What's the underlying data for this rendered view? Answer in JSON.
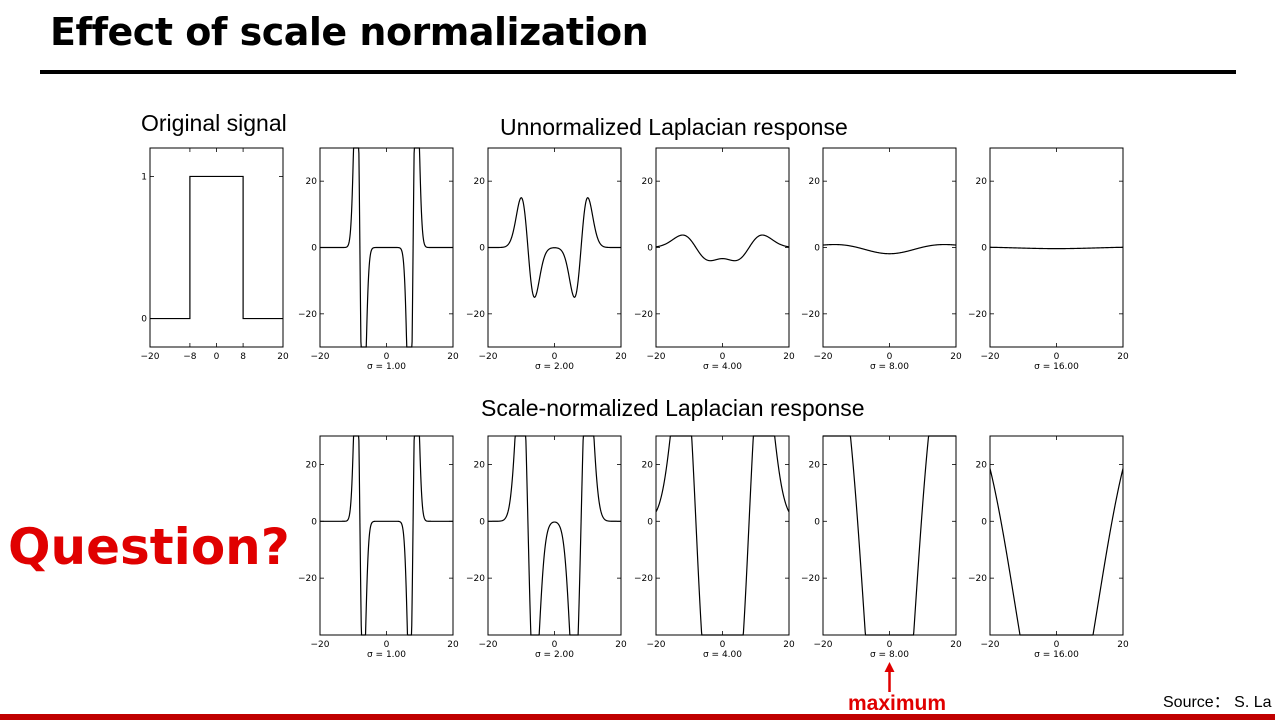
{
  "slide": {
    "title": "Effect of scale normalization",
    "caption_original": "Original signal",
    "caption_unnormalized": "Unnormalized Laplacian response",
    "caption_normalized": "Scale-normalized Laplacian response",
    "question": "Question?",
    "maximum_label": "maximum",
    "source": "Source： S. La",
    "colors": {
      "accent": "#e00000",
      "footer": "#c00000",
      "rule": "#000000"
    }
  },
  "chart_data": [
    {
      "id": "original",
      "type": "line",
      "title": "",
      "xlim": [
        -20,
        20
      ],
      "ylim": [
        -0.2,
        1.2
      ],
      "xticks": [
        -20,
        -8,
        0,
        8,
        20
      ],
      "xtick_labels": [
        "−20",
        "−8",
        "0",
        "8",
        "20"
      ],
      "yticks": [
        0,
        1
      ],
      "ytick_labels": [
        "0",
        "1"
      ],
      "xlabel": "",
      "x": [
        -20,
        -8,
        -8,
        8,
        8,
        20
      ],
      "y": [
        0,
        0,
        1,
        1,
        0,
        0
      ]
    },
    {
      "id": "unnorm-1",
      "group": "unnormalized",
      "type": "line",
      "sigma": 1,
      "xlabel": "σ = 1.00",
      "xlim": [
        -20,
        20
      ],
      "ylim": [
        -30,
        30
      ],
      "xticks": [
        -20,
        0,
        20
      ],
      "xtick_labels": [
        "−20",
        "0",
        "20"
      ],
      "yticks": [
        -20,
        0,
        20
      ],
      "ytick_labels": [
        "−20",
        "0",
        "20"
      ]
    },
    {
      "id": "unnorm-2",
      "group": "unnormalized",
      "type": "line",
      "sigma": 2,
      "xlabel": "σ = 2.00",
      "xlim": [
        -20,
        20
      ],
      "ylim": [
        -30,
        30
      ],
      "xticks": [
        -20,
        0,
        20
      ],
      "xtick_labels": [
        "−20",
        "0",
        "20"
      ],
      "yticks": [
        -20,
        0,
        20
      ],
      "ytick_labels": [
        "−20",
        "0",
        "20"
      ]
    },
    {
      "id": "unnorm-4",
      "group": "unnormalized",
      "type": "line",
      "sigma": 4,
      "xlabel": "σ = 4.00",
      "xlim": [
        -20,
        20
      ],
      "ylim": [
        -30,
        30
      ],
      "xticks": [
        -20,
        0,
        20
      ],
      "xtick_labels": [
        "−20",
        "0",
        "20"
      ],
      "yticks": [
        -20,
        0,
        20
      ],
      "ytick_labels": [
        "−20",
        "0",
        "20"
      ]
    },
    {
      "id": "unnorm-8",
      "group": "unnormalized",
      "type": "line",
      "sigma": 8,
      "xlabel": "σ = 8.00",
      "xlim": [
        -20,
        20
      ],
      "ylim": [
        -30,
        30
      ],
      "xticks": [
        -20,
        0,
        20
      ],
      "xtick_labels": [
        "−20",
        "0",
        "20"
      ],
      "yticks": [
        -20,
        0,
        20
      ],
      "ytick_labels": [
        "−20",
        "0",
        "20"
      ]
    },
    {
      "id": "unnorm-16",
      "group": "unnormalized",
      "type": "line",
      "sigma": 16,
      "xlabel": "σ = 16.00",
      "xlim": [
        -20,
        20
      ],
      "ylim": [
        -30,
        30
      ],
      "xticks": [
        -20,
        0,
        20
      ],
      "xtick_labels": [
        "−20",
        "0",
        "20"
      ],
      "yticks": [
        -20,
        0,
        20
      ],
      "ytick_labels": [
        "−20",
        "0",
        "20"
      ]
    },
    {
      "id": "norm-1",
      "group": "normalized",
      "type": "line",
      "sigma": 1,
      "xlabel": "σ = 1.00",
      "xlim": [
        -20,
        20
      ],
      "ylim": [
        -40,
        30
      ],
      "xticks": [
        -20,
        0,
        20
      ],
      "xtick_labels": [
        "−20",
        "0",
        "20"
      ],
      "yticks": [
        -20,
        0,
        20
      ],
      "ytick_labels": [
        "−20",
        "0",
        "20"
      ]
    },
    {
      "id": "norm-2",
      "group": "normalized",
      "type": "line",
      "sigma": 2,
      "xlabel": "σ = 2.00",
      "xlim": [
        -20,
        20
      ],
      "ylim": [
        -40,
        30
      ],
      "xticks": [
        -20,
        0,
        20
      ],
      "xtick_labels": [
        "−20",
        "0",
        "20"
      ],
      "yticks": [
        -20,
        0,
        20
      ],
      "ytick_labels": [
        "−20",
        "0",
        "20"
      ]
    },
    {
      "id": "norm-4",
      "group": "normalized",
      "type": "line",
      "sigma": 4,
      "xlabel": "σ = 4.00",
      "xlim": [
        -20,
        20
      ],
      "ylim": [
        -40,
        30
      ],
      "xticks": [
        -20,
        0,
        20
      ],
      "xtick_labels": [
        "−20",
        "0",
        "20"
      ],
      "yticks": [
        -20,
        0,
        20
      ],
      "ytick_labels": [
        "−20",
        "0",
        "20"
      ]
    },
    {
      "id": "norm-8",
      "group": "normalized",
      "type": "line",
      "sigma": 8,
      "xlabel": "σ = 8.00",
      "xlim": [
        -20,
        20
      ],
      "ylim": [
        -40,
        30
      ],
      "xticks": [
        -20,
        0,
        20
      ],
      "xtick_labels": [
        "−20",
        "0",
        "20"
      ],
      "yticks": [
        -20,
        0,
        20
      ],
      "ytick_labels": [
        "−20",
        "0",
        "20"
      ],
      "annotation": "maximum"
    },
    {
      "id": "norm-16",
      "group": "normalized",
      "type": "line",
      "sigma": 16,
      "xlabel": "σ = 16.00",
      "xlim": [
        -20,
        20
      ],
      "ylim": [
        -40,
        30
      ],
      "xticks": [
        -20,
        0,
        20
      ],
      "xtick_labels": [
        "−20",
        "0",
        "20"
      ],
      "yticks": [
        -20,
        0,
        20
      ],
      "ytick_labels": [
        "−20",
        "0",
        "20"
      ]
    }
  ]
}
